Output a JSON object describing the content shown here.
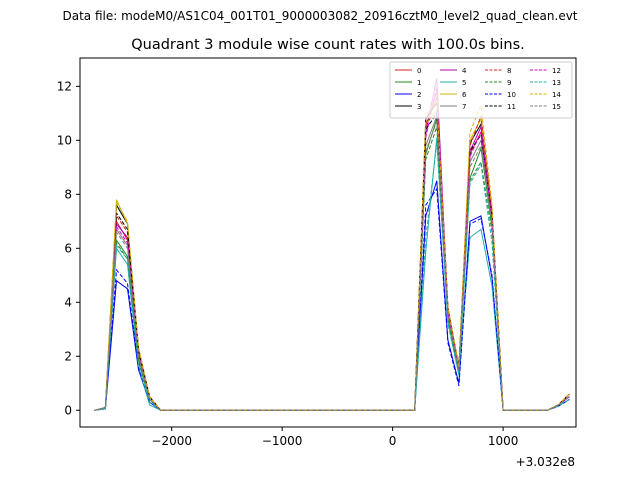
{
  "chart_data": {
    "type": "line",
    "suptitle": "Data file: modeM0/AS1C04_001T01_9000003082_20916cztM0_level2_quad_clean.evt",
    "title": "Quadrant 3 module wise count rates with 100.0s bins.",
    "xlabel": "",
    "ylabel": "",
    "x_offset_label": "+3.032e8",
    "xlim": [
      -2830,
      1660
    ],
    "ylim": [
      -0.62,
      13.05
    ],
    "xticks": [
      -2000,
      -1000,
      0,
      1000
    ],
    "xtick_labels": [
      "−2000",
      "−1000",
      "0",
      "1000"
    ],
    "yticks": [
      0,
      2,
      4,
      6,
      8,
      10,
      12
    ],
    "ytick_labels": [
      "0",
      "2",
      "4",
      "6",
      "8",
      "10",
      "12"
    ],
    "grid": false,
    "legend_position": "top-right",
    "x": [
      -2700,
      -2600,
      -2500,
      -2400,
      -2300,
      -2200,
      -2100,
      -2000,
      -1900,
      -1800,
      -1700,
      -1600,
      -1500,
      -1400,
      -1300,
      -1200,
      -1100,
      -1000,
      -900,
      -800,
      -700,
      -600,
      -500,
      -400,
      -300,
      -200,
      -100,
      0,
      100,
      200,
      300,
      400,
      500,
      600,
      700,
      800,
      900,
      1000,
      1100,
      1200,
      1300,
      1400,
      1500,
      1600
    ],
    "series": [
      {
        "name": "0",
        "color": "#d62020",
        "dash": "solid",
        "values": [
          0,
          0.1,
          7.0,
          6.3,
          2.2,
          0.5,
          0,
          0,
          0,
          0,
          0,
          0,
          0,
          0,
          0,
          0,
          0,
          0,
          0,
          0,
          0,
          0,
          0,
          0,
          0,
          0,
          0,
          0,
          0,
          0,
          10.5,
          11.8,
          3.8,
          1.6,
          9.5,
          10.3,
          7.2,
          0,
          0,
          0,
          0,
          0,
          0.2,
          0.5
        ]
      },
      {
        "name": "1",
        "color": "#228b22",
        "dash": "solid",
        "values": [
          0,
          0.1,
          6.3,
          5.7,
          1.9,
          0.4,
          0,
          0,
          0,
          0,
          0,
          0,
          0,
          0,
          0,
          0,
          0,
          0,
          0,
          0,
          0,
          0,
          0,
          0,
          0,
          0,
          0,
          0,
          0,
          0,
          9.5,
          10.8,
          3.5,
          1.4,
          8.6,
          9.7,
          6.8,
          0,
          0,
          0,
          0,
          0,
          0.2,
          0.5
        ]
      },
      {
        "name": "2",
        "color": "#0000ff",
        "dash": "solid",
        "values": [
          0,
          0.05,
          4.8,
          4.5,
          1.5,
          0.3,
          0,
          0,
          0,
          0,
          0,
          0,
          0,
          0,
          0,
          0,
          0,
          0,
          0,
          0,
          0,
          0,
          0,
          0,
          0,
          0,
          0,
          0,
          0,
          0,
          7.2,
          8.5,
          2.6,
          1.0,
          7.0,
          7.2,
          4.9,
          0,
          0,
          0,
          0,
          0,
          0.15,
          0.4
        ]
      },
      {
        "name": "3",
        "color": "#000000",
        "dash": "solid",
        "values": [
          0,
          0.1,
          7.6,
          6.9,
          2.3,
          0.5,
          0,
          0,
          0,
          0,
          0,
          0,
          0,
          0,
          0,
          0,
          0,
          0,
          0,
          0,
          0,
          0,
          0,
          0,
          0,
          0,
          0,
          0,
          0,
          0,
          10.8,
          11.4,
          3.8,
          1.6,
          9.9,
          10.6,
          7.3,
          0,
          0,
          0,
          0,
          0,
          0.2,
          0.6
        ]
      },
      {
        "name": "4",
        "color": "#b000b0",
        "dash": "solid",
        "values": [
          0,
          0.1,
          6.9,
          6.4,
          2.1,
          0.5,
          0,
          0,
          0,
          0,
          0,
          0,
          0,
          0,
          0,
          0,
          0,
          0,
          0,
          0,
          0,
          0,
          0,
          0,
          0,
          0,
          0,
          0,
          0,
          0,
          10.3,
          12.3,
          3.7,
          1.5,
          9.6,
          10.5,
          7.3,
          0,
          0,
          0,
          0,
          0,
          0.2,
          0.5
        ]
      },
      {
        "name": "5",
        "color": "#20b2aa",
        "dash": "solid",
        "values": [
          0,
          0.05,
          6.0,
          5.4,
          1.6,
          0.2,
          0,
          0,
          0,
          0,
          0,
          0,
          0,
          0,
          0,
          0,
          0,
          0,
          0,
          0,
          0,
          0,
          0,
          0,
          0,
          0,
          0,
          0,
          0,
          0,
          5.9,
          10.1,
          3.3,
          1.3,
          6.4,
          6.7,
          4.6,
          0,
          0,
          0,
          0,
          0,
          0.15,
          0.4
        ]
      },
      {
        "name": "6",
        "color": "#d4b000",
        "dash": "solid",
        "values": [
          0,
          0.1,
          7.8,
          6.9,
          2.3,
          0.5,
          0,
          0,
          0,
          0,
          0,
          0,
          0,
          0,
          0,
          0,
          0,
          0,
          0,
          0,
          0,
          0,
          0,
          0,
          0,
          0,
          0,
          0,
          0,
          0,
          10.6,
          11.1,
          3.7,
          1.6,
          10.0,
          10.8,
          7.4,
          0,
          0,
          0,
          0,
          0,
          0.2,
          0.6
        ]
      },
      {
        "name": "7",
        "color": "#808080",
        "dash": "solid",
        "values": [
          0,
          0.1,
          6.7,
          6.1,
          2.0,
          0.4,
          0,
          0,
          0,
          0,
          0,
          0,
          0,
          0,
          0,
          0,
          0,
          0,
          0,
          0,
          0,
          0,
          0,
          0,
          0,
          0,
          0,
          0,
          0,
          0,
          9.8,
          10.9,
          3.6,
          1.5,
          9.2,
          10.0,
          7.0,
          0,
          0,
          0,
          0,
          0,
          0.2,
          0.5
        ]
      },
      {
        "name": "8",
        "color": "#d62020",
        "dash": "dashed",
        "values": [
          0,
          0.1,
          7.2,
          6.6,
          2.2,
          0.5,
          0,
          0,
          0,
          0,
          0,
          0,
          0,
          0,
          0,
          0,
          0,
          0,
          0,
          0,
          0,
          0,
          0,
          0,
          0,
          0,
          0,
          0,
          0,
          0,
          10.6,
          11.6,
          3.8,
          1.6,
          9.8,
          10.9,
          7.4,
          0,
          0,
          0,
          0,
          0,
          0.2,
          0.6
        ]
      },
      {
        "name": "9",
        "color": "#228b22",
        "dash": "dashed",
        "values": [
          0,
          0.1,
          6.2,
          5.6,
          1.8,
          0.4,
          0,
          0,
          0,
          0,
          0,
          0,
          0,
          0,
          0,
          0,
          0,
          0,
          0,
          0,
          0,
          0,
          0,
          0,
          0,
          0,
          0,
          0,
          0,
          0,
          9.3,
          10.5,
          3.4,
          1.4,
          8.5,
          9.2,
          6.6,
          0,
          0,
          0,
          0,
          0,
          0.2,
          0.5
        ]
      },
      {
        "name": "10",
        "color": "#0000ff",
        "dash": "dashed",
        "values": [
          0,
          0.05,
          5.2,
          4.7,
          1.6,
          0.3,
          0,
          0,
          0,
          0,
          0,
          0,
          0,
          0,
          0,
          0,
          0,
          0,
          0,
          0,
          0,
          0,
          0,
          0,
          0,
          0,
          0,
          0,
          0,
          0,
          7.6,
          8.2,
          2.5,
          0.9,
          6.9,
          7.1,
          5.0,
          0,
          0,
          0,
          0,
          0,
          0.15,
          0.4
        ]
      },
      {
        "name": "11",
        "color": "#000000",
        "dash": "dashed",
        "values": [
          0,
          0.1,
          7.3,
          6.7,
          2.2,
          0.5,
          0,
          0,
          0,
          0,
          0,
          0,
          0,
          0,
          0,
          0,
          0,
          0,
          0,
          0,
          0,
          0,
          0,
          0,
          0,
          0,
          0,
          0,
          0,
          0,
          10.4,
          11.0,
          3.7,
          1.6,
          9.6,
          10.2,
          7.2,
          0,
          0,
          0,
          0,
          0,
          0.2,
          0.6
        ]
      },
      {
        "name": "12",
        "color": "#d000d0",
        "dash": "dashed",
        "values": [
          0,
          0.1,
          6.8,
          6.2,
          2.1,
          0.5,
          0,
          0,
          0,
          0,
          0,
          0,
          0,
          0,
          0,
          0,
          0,
          0,
          0,
          0,
          0,
          0,
          0,
          0,
          0,
          0,
          0,
          0,
          0,
          0,
          10.1,
          12.0,
          3.6,
          1.5,
          9.4,
          10.3,
          7.1,
          0,
          0,
          0,
          0,
          0,
          0.2,
          0.5
        ]
      },
      {
        "name": "13",
        "color": "#20b2aa",
        "dash": "dashed",
        "values": [
          0,
          0.05,
          6.1,
          5.6,
          1.7,
          0.3,
          0,
          0,
          0,
          0,
          0,
          0,
          0,
          0,
          0,
          0,
          0,
          0,
          0,
          0,
          0,
          0,
          0,
          0,
          0,
          0,
          0,
          0,
          0,
          0,
          6.4,
          9.9,
          3.2,
          1.3,
          8.4,
          9.1,
          6.2,
          0,
          0,
          0,
          0,
          0,
          0.15,
          0.4
        ]
      },
      {
        "name": "14",
        "color": "#d4b000",
        "dash": "dashed",
        "values": [
          0,
          0.1,
          7.7,
          7.0,
          2.3,
          0.5,
          0,
          0,
          0,
          0,
          0,
          0,
          0,
          0,
          0,
          0,
          0,
          0,
          0,
          0,
          0,
          0,
          0,
          0,
          0,
          0,
          0,
          0,
          0,
          0,
          10.9,
          11.5,
          3.8,
          1.6,
          10.3,
          11.3,
          7.6,
          0,
          0,
          0,
          0,
          0,
          0.2,
          0.6
        ]
      },
      {
        "name": "15",
        "color": "#808080",
        "dash": "dashed",
        "values": [
          0,
          0.1,
          6.6,
          6.0,
          2.0,
          0.4,
          0,
          0,
          0,
          0,
          0,
          0,
          0,
          0,
          0,
          0,
          0,
          0,
          0,
          0,
          0,
          0,
          0,
          0,
          0,
          0,
          0,
          0,
          0,
          0,
          9.6,
          10.7,
          3.5,
          1.5,
          9.0,
          9.8,
          6.9,
          0,
          0,
          0,
          0,
          0,
          0.2,
          0.5
        ]
      }
    ]
  }
}
